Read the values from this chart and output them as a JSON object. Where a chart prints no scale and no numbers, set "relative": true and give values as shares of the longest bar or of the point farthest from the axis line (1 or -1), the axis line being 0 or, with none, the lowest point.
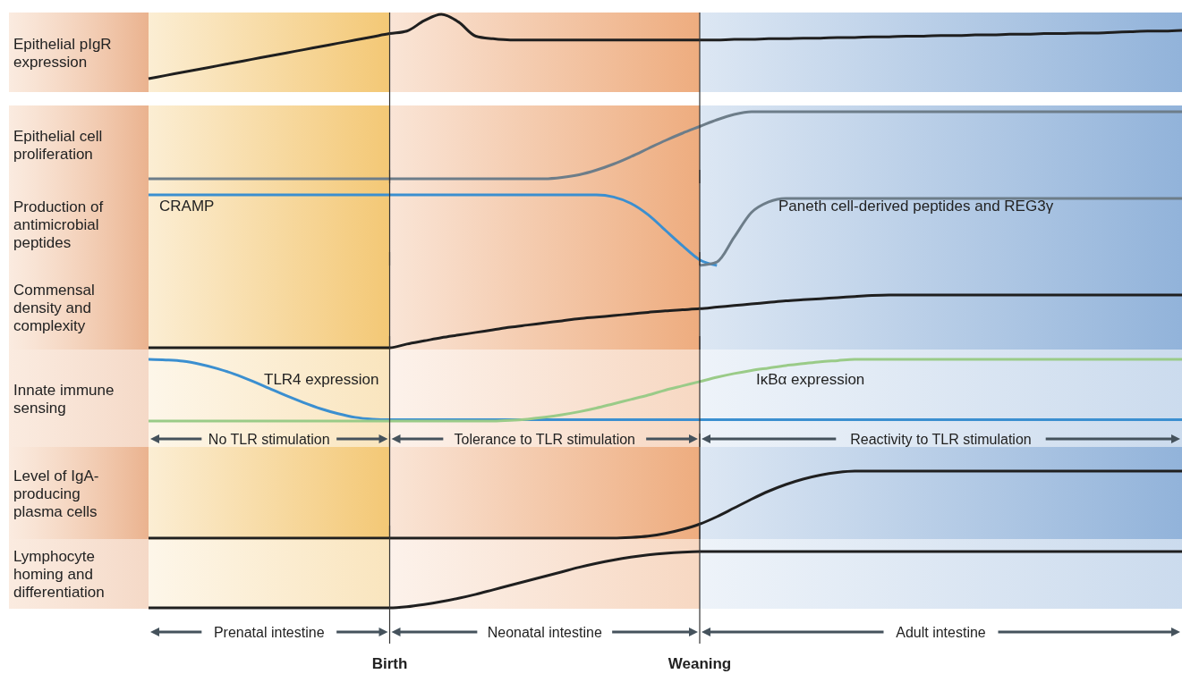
{
  "chart_data": [
    {
      "type": "line",
      "relative": true,
      "title": "Epithelial pIgR expression",
      "categories": [
        null,
        null,
        null,
        null,
        null,
        null,
        null,
        null,
        null,
        null,
        null,
        null,
        null,
        null,
        null,
        null,
        null,
        null,
        null,
        null,
        null,
        null,
        null,
        null,
        null,
        null,
        null,
        null,
        null,
        null,
        null,
        null,
        null,
        null,
        null,
        null,
        null,
        null,
        null,
        null,
        null,
        null,
        null,
        null,
        null,
        null,
        null,
        null,
        null,
        null,
        null,
        null,
        null,
        null,
        null,
        null,
        null,
        null,
        null,
        null,
        null
      ],
      "series": [
        {
          "color": "#1f1f1f",
          "values": [
            0,
            0.05,
            0.1,
            0.15,
            0.2,
            0.25,
            0.3,
            0.35,
            0.4,
            0.45,
            0.5,
            0.55,
            0.6,
            0.65,
            0.7,
            0.74,
            0.9,
            1.0,
            0.88,
            0.66,
            0.62,
            0.6,
            0.6,
            0.6,
            0.6,
            0.6,
            0.6,
            0.6,
            0.6,
            0.6,
            0.6,
            0.6,
            0.6,
            0.6,
            0.61,
            0.61,
            0.62,
            0.62,
            0.63,
            0.63,
            0.64,
            0.64,
            0.65,
            0.65,
            0.66,
            0.66,
            0.67,
            0.67,
            0.68,
            0.68,
            0.69,
            0.69,
            0.7,
            0.7,
            0.71,
            0.71,
            0.72,
            0.73,
            0.74,
            0.74,
            0.75
          ]
        }
      ]
    },
    {
      "type": "line",
      "relative": true,
      "title": "Epithelial cell proliferation",
      "categories": [
        null,
        null,
        null,
        null,
        null,
        null,
        null,
        null,
        null,
        null,
        null,
        null,
        null,
        null,
        null,
        null,
        null,
        null,
        null,
        null,
        null,
        null,
        null,
        null,
        null,
        null,
        null,
        null,
        null,
        null,
        null,
        null,
        null,
        null,
        null,
        null,
        null,
        null,
        null,
        null,
        null,
        null,
        null,
        null,
        null,
        null,
        null,
        null,
        null,
        null,
        null,
        null,
        null,
        null,
        null,
        null,
        null,
        null,
        null,
        null,
        null
      ],
      "series": [
        {
          "color": "#6d7d89",
          "values": [
            0,
            0,
            0,
            0,
            0,
            0,
            0,
            0,
            0,
            0,
            0,
            0,
            0,
            0,
            0,
            0,
            0,
            0,
            0,
            0,
            0,
            0,
            0,
            0,
            0.02,
            0.06,
            0.13,
            0.22,
            0.33,
            0.45,
            0.57,
            0.68,
            0.78,
            0.88,
            0.96,
            1,
            1,
            1,
            1,
            1,
            1,
            1,
            1,
            1,
            1,
            1,
            1,
            1,
            1,
            1,
            1,
            1,
            1,
            1,
            1,
            1,
            1,
            1,
            1,
            1,
            1
          ]
        }
      ]
    },
    {
      "type": "line",
      "relative": true,
      "title": "Production of antimicrobial peptides",
      "categories": [
        null,
        null,
        null,
        null,
        null,
        null,
        null,
        null,
        null,
        null,
        null,
        null,
        null,
        null,
        null,
        null,
        null,
        null,
        null,
        null,
        null,
        null,
        null,
        null,
        null,
        null,
        null,
        null,
        null,
        null,
        null,
        null,
        null,
        null,
        null,
        null,
        null,
        null,
        null,
        null,
        null,
        null,
        null,
        null,
        null,
        null,
        null,
        null,
        null,
        null,
        null,
        null,
        null,
        null,
        null,
        null,
        null,
        null,
        null,
        null,
        null
      ],
      "series": [
        {
          "name": "CRAMP",
          "color": "#3b8fd0",
          "values": [
            1,
            1,
            1,
            1,
            1,
            1,
            1,
            1,
            1,
            1,
            1,
            1,
            1,
            1,
            1,
            1,
            1,
            1,
            1,
            1,
            1,
            1,
            1,
            1,
            1,
            1,
            1,
            0.97,
            0.88,
            0.72,
            0.5,
            0.28,
            0.08,
            0,
            null,
            null,
            null,
            null,
            null,
            null,
            null,
            null,
            null,
            null,
            null,
            null,
            null,
            null,
            null,
            null,
            null,
            null,
            null,
            null,
            null,
            null,
            null,
            null,
            null,
            null,
            null
          ]
        },
        {
          "name": "Paneth cell-derived peptides and REG3γ",
          "color": "#6d7d89",
          "values": [
            null,
            null,
            null,
            null,
            null,
            null,
            null,
            null,
            null,
            null,
            null,
            null,
            null,
            null,
            null,
            null,
            null,
            null,
            null,
            null,
            null,
            null,
            null,
            null,
            null,
            null,
            null,
            null,
            null,
            null,
            null,
            null,
            0,
            0.05,
            0.4,
            0.75,
            0.9,
            0.95,
            0.95,
            0.95,
            0.95,
            0.95,
            0.95,
            0.95,
            0.95,
            0.95,
            0.95,
            0.95,
            0.95,
            0.95,
            0.95,
            0.95,
            0.95,
            0.95,
            0.95,
            0.95,
            0.95,
            0.95,
            0.95,
            0.95,
            0.95
          ]
        }
      ]
    },
    {
      "type": "line",
      "relative": true,
      "title": "Commensal density and complexity",
      "categories": [
        null,
        null,
        null,
        null,
        null,
        null,
        null,
        null,
        null,
        null,
        null,
        null,
        null,
        null,
        null,
        null,
        null,
        null,
        null,
        null,
        null,
        null,
        null,
        null,
        null,
        null,
        null,
        null,
        null,
        null,
        null,
        null,
        null,
        null,
        null,
        null,
        null,
        null,
        null,
        null,
        null,
        null,
        null,
        null,
        null,
        null,
        null,
        null,
        null,
        null,
        null,
        null,
        null,
        null,
        null,
        null,
        null,
        null,
        null,
        null,
        null
      ],
      "series": [
        {
          "color": "#1f1f1f",
          "values": [
            0,
            0,
            0,
            0,
            0,
            0,
            0,
            0,
            0,
            0,
            0,
            0,
            0,
            0,
            0,
            0.07,
            0.13,
            0.19,
            0.24,
            0.29,
            0.34,
            0.39,
            0.43,
            0.47,
            0.51,
            0.55,
            0.58,
            0.61,
            0.64,
            0.67,
            0.7,
            0.72,
            0.74,
            0.77,
            0.8,
            0.83,
            0.86,
            0.89,
            0.91,
            0.93,
            0.95,
            0.97,
            0.99,
            1,
            1,
            1,
            1,
            1,
            1,
            1,
            1,
            1,
            1,
            1,
            1,
            1,
            1,
            1,
            1,
            1,
            1
          ]
        }
      ]
    },
    {
      "type": "line",
      "relative": true,
      "title": "Innate immune sensing",
      "categories": [
        null,
        null,
        null,
        null,
        null,
        null,
        null,
        null,
        null,
        null,
        null,
        null,
        null,
        null,
        null,
        null,
        null,
        null,
        null,
        null,
        null,
        null,
        null,
        null,
        null,
        null,
        null,
        null,
        null,
        null,
        null,
        null,
        null,
        null,
        null,
        null,
        null,
        null,
        null,
        null,
        null,
        null,
        null,
        null,
        null,
        null,
        null,
        null,
        null,
        null,
        null,
        null,
        null,
        null,
        null,
        null,
        null,
        null,
        null,
        null,
        null
      ],
      "series": [
        {
          "name": "TLR4 expression",
          "color": "#3b8fd0",
          "values": [
            1,
            0.99,
            0.97,
            0.92,
            0.85,
            0.76,
            0.65,
            0.53,
            0.41,
            0.3,
            0.2,
            0.12,
            0.06,
            0.03,
            0.02,
            0.02,
            0.02,
            0.02,
            0.02,
            0.02,
            0.02,
            0.02,
            0.02,
            0.02,
            0.02,
            0.02,
            0.02,
            0.02,
            0.02,
            0.02,
            0.02,
            0.02,
            0.02,
            0.02,
            0.02,
            0.02,
            0.02,
            0.02,
            0.02,
            0.02,
            0.02,
            0.02,
            0.02,
            0.02,
            0.02,
            0.02,
            0.02,
            0.02,
            0.02,
            0.02,
            0.02,
            0.02,
            0.02,
            0.02,
            0.02,
            0.02,
            0.02,
            0.02,
            0.02,
            0.02,
            0.02
          ]
        },
        {
          "name": "IκBα expression",
          "color": "#9acb88",
          "values": [
            0,
            0,
            0,
            0,
            0,
            0,
            0,
            0,
            0,
            0,
            0,
            0,
            0,
            0,
            0,
            0,
            0,
            0,
            0,
            0,
            0,
            0.01,
            0.03,
            0.06,
            0.1,
            0.15,
            0.21,
            0.28,
            0.35,
            0.42,
            0.5,
            0.57,
            0.64,
            0.71,
            0.77,
            0.82,
            0.86,
            0.9,
            0.93,
            0.96,
            0.98,
            1,
            1,
            1,
            1,
            1,
            1,
            1,
            1,
            1,
            1,
            1,
            1,
            1,
            1,
            1,
            1,
            1,
            1,
            1,
            1
          ]
        }
      ],
      "annotations": [
        "No TLR stimulation",
        "Tolerance to TLR stimulation",
        "Reactivity to TLR stimulation"
      ]
    },
    {
      "type": "line",
      "relative": true,
      "title": "Level of IgA-producing plasma cells",
      "categories": [
        null,
        null,
        null,
        null,
        null,
        null,
        null,
        null,
        null,
        null,
        null,
        null,
        null,
        null,
        null,
        null,
        null,
        null,
        null,
        null,
        null,
        null,
        null,
        null,
        null,
        null,
        null,
        null,
        null,
        null,
        null,
        null,
        null,
        null,
        null,
        null,
        null,
        null,
        null,
        null,
        null,
        null,
        null,
        null,
        null,
        null,
        null,
        null,
        null,
        null,
        null,
        null,
        null,
        null,
        null,
        null,
        null,
        null,
        null,
        null,
        null
      ],
      "series": [
        {
          "color": "#1f1f1f",
          "values": [
            0,
            0,
            0,
            0,
            0,
            0,
            0,
            0,
            0,
            0,
            0,
            0,
            0,
            0,
            0,
            0,
            0,
            0,
            0,
            0,
            0,
            0,
            0,
            0,
            0,
            0,
            0,
            0,
            0.01,
            0.03,
            0.07,
            0.13,
            0.21,
            0.32,
            0.45,
            0.58,
            0.7,
            0.8,
            0.88,
            0.94,
            0.98,
            1,
            1,
            1,
            1,
            1,
            1,
            1,
            1,
            1,
            1,
            1,
            1,
            1,
            1,
            1,
            1,
            1,
            1,
            1,
            1
          ]
        }
      ]
    },
    {
      "type": "line",
      "relative": true,
      "title": "Lymphocyte homing and differentiation",
      "categories": [
        null,
        null,
        null,
        null,
        null,
        null,
        null,
        null,
        null,
        null,
        null,
        null,
        null,
        null,
        null,
        null,
        null,
        null,
        null,
        null,
        null,
        null,
        null,
        null,
        null,
        null,
        null,
        null,
        null,
        null,
        null,
        null,
        null,
        null,
        null,
        null,
        null,
        null,
        null,
        null,
        null,
        null,
        null,
        null,
        null,
        null,
        null,
        null,
        null,
        null,
        null,
        null,
        null,
        null,
        null,
        null,
        null,
        null,
        null,
        null,
        null
      ],
      "series": [
        {
          "color": "#1f1f1f",
          "values": [
            0,
            0,
            0,
            0,
            0,
            0,
            0,
            0,
            0,
            0,
            0,
            0,
            0,
            0,
            0,
            0.02,
            0.06,
            0.11,
            0.17,
            0.24,
            0.32,
            0.4,
            0.48,
            0.56,
            0.64,
            0.72,
            0.79,
            0.85,
            0.9,
            0.94,
            0.97,
            0.99,
            1,
            1,
            1,
            1,
            1,
            1,
            1,
            1,
            1,
            1,
            1,
            1,
            1,
            1,
            1,
            1,
            1,
            1,
            1,
            1,
            1,
            1,
            1,
            1,
            1,
            1,
            1,
            1,
            1
          ]
        }
      ],
      "annotations": [
        "Prenatal intestine",
        "Neonatal intestine",
        "Adult intestine",
        "Birth",
        "Weaning"
      ]
    }
  ]
}
